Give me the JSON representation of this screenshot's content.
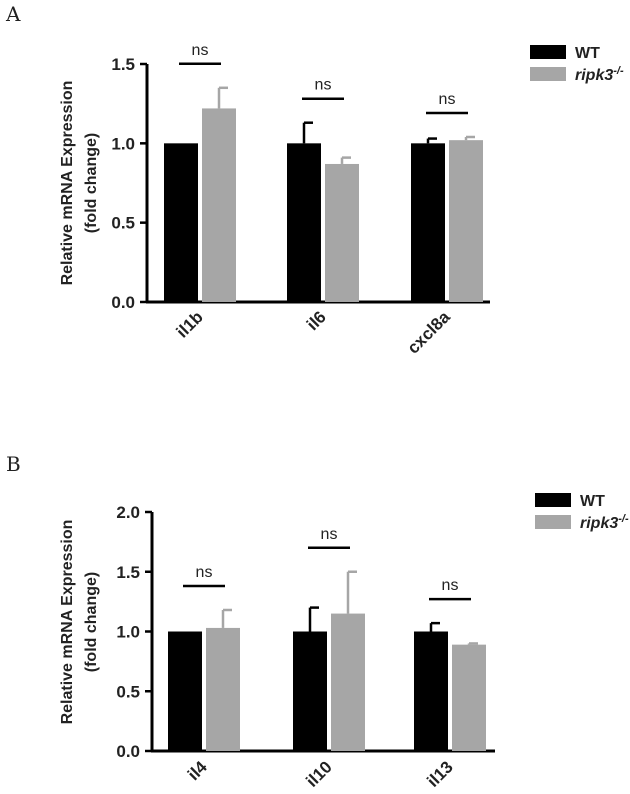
{
  "chart_data": [
    {
      "panel": "A",
      "type": "bar",
      "ylabel_lines": [
        "Relative mRNA Expression",
        "(fold change)"
      ],
      "ylim": [
        0,
        1.5
      ],
      "yticks": [
        "0.0",
        "0.5",
        "1.0",
        "1.5"
      ],
      "categories": [
        "il1b",
        "il6",
        "cxcl8a"
      ],
      "series": [
        {
          "name": "WT",
          "color": "#000000",
          "values": [
            1.0,
            1.0,
            1.0
          ],
          "errors": [
            0,
            0.13,
            0.03
          ]
        },
        {
          "name": "ripk3-/-",
          "color": "#a6a6a6",
          "values": [
            1.22,
            0.87,
            1.02
          ],
          "errors": [
            0.13,
            0.04,
            0.02
          ]
        }
      ],
      "annotations": [
        "ns",
        "ns",
        "ns"
      ],
      "legend": {
        "placement": "top-right",
        "labels": [
          "WT",
          "ripk3"
        ],
        "superscript": "-/-"
      }
    },
    {
      "panel": "B",
      "type": "bar",
      "ylabel_lines": [
        "Relative mRNA Expression",
        "(fold change)"
      ],
      "ylim": [
        0,
        2.0
      ],
      "yticks": [
        "0.0",
        "0.5",
        "1.0",
        "1.5",
        "2.0"
      ],
      "categories": [
        "il4",
        "il10",
        "il13"
      ],
      "series": [
        {
          "name": "WT",
          "color": "#000000",
          "values": [
            1.0,
            1.0,
            1.0
          ],
          "errors": [
            0,
            0.2,
            0.07
          ]
        },
        {
          "name": "ripk3-/-",
          "color": "#a6a6a6",
          "values": [
            1.03,
            1.15,
            0.89
          ],
          "errors": [
            0.15,
            0.35,
            0.01
          ]
        }
      ],
      "annotations": [
        "ns",
        "ns",
        "ns"
      ],
      "legend": {
        "placement": "top-right",
        "labels": [
          "WT",
          "ripk3"
        ],
        "superscript": "-/-"
      }
    }
  ]
}
